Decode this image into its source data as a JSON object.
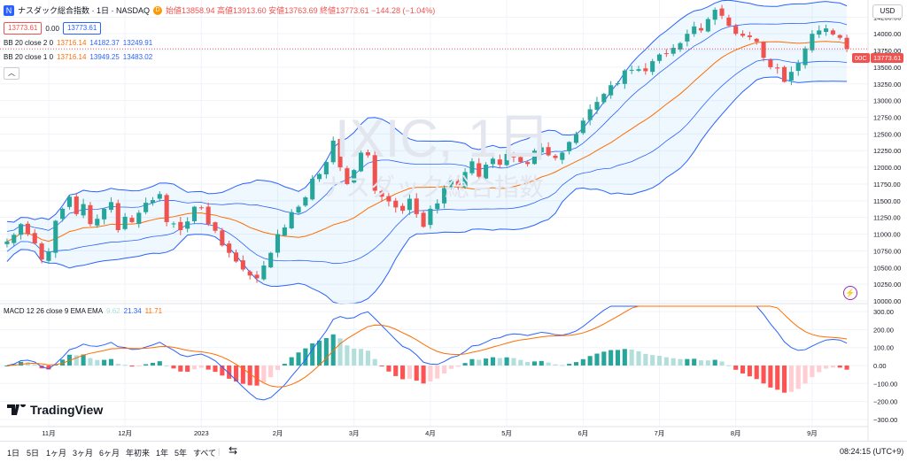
{
  "header": {
    "symbol_title": "ナスダック総合指数 · 1日 · NASDAQ",
    "badge": "D",
    "ohlc": "始値13858.94 高値13913.60 安値13763.69 終値13773.61 −144.28 (−1.04%)",
    "bid": "13773.61",
    "spread": "0.00",
    "ask": "13773.61",
    "currency": "USD"
  },
  "legend": {
    "bb1_label": "BB 20 close 2 0",
    "bb1_basis": "13716.14",
    "bb1_upper": "14182.37",
    "bb1_lower": "13249.91",
    "bb2_label": "BB 20 close 1 0",
    "bb2_basis": "13716.14",
    "bb2_upper": "13949.25",
    "bb2_lower": "13483.02",
    "macd_label": "MACD 12 26 close 9 EMA EMA",
    "macd_hist": "9.62",
    "macd_line": "21.34",
    "macd_signal": "11.71"
  },
  "watermark": {
    "main": "IXIC, 1日",
    "sub": "ナスダック総合指数"
  },
  "price_tags": {
    "last_close": "13773.61",
    "prefix": "00C"
  },
  "brand": {
    "name": "TradingView"
  },
  "timeframes": [
    "1日",
    "5日",
    "1ヶ月",
    "3ヶ月",
    "6ヶ月",
    "年初来",
    "1年",
    "5年",
    "すべて"
  ],
  "clock": "08:24:15 (UTC+9)",
  "colors": {
    "up": "#26a69a",
    "down": "#ef5350",
    "bb_outer": "#2962ff",
    "bb_basis": "#ff6d00",
    "macd_line": "#2962ff",
    "signal_line": "#ff6d00",
    "hist_up_strong": "#26a69a",
    "hist_up_weak": "#b2dfdb",
    "hist_down_strong": "#ff5252",
    "hist_down_weak": "#ffcdd2"
  },
  "chart_data": [
    {
      "type": "candlestick",
      "x_ticks": [
        "11月",
        "12月",
        "2023",
        "2月",
        "3月",
        "4月",
        "5月",
        "6月",
        "7月",
        "8月",
        "9月"
      ],
      "y_ticks": [
        10000,
        10250,
        10500,
        10750,
        11000,
        11250,
        11500,
        11750,
        12000,
        12250,
        12500,
        12750,
        13000,
        13250,
        13500,
        13750,
        14000,
        14250
      ],
      "ylim": [
        10000,
        14400
      ],
      "close_series": [
        10890,
        10990,
        11150,
        11000,
        10860,
        10620,
        10740,
        11200,
        11380,
        11560,
        11300,
        11450,
        11150,
        11230,
        11380,
        11480,
        11060,
        11260,
        11180,
        11320,
        11470,
        11510,
        11600,
        11180,
        11160,
        11060,
        11190,
        11410,
        11400,
        11150,
        11050,
        10830,
        10720,
        10590,
        10470,
        10380,
        10340,
        10530,
        10720,
        11000,
        11100,
        11330,
        11410,
        11550,
        11830,
        11900,
        12080,
        12400,
        12000,
        11750,
        11960,
        12220,
        12180,
        11650,
        11560,
        11490,
        11400,
        11350,
        11530,
        11300,
        11110,
        11380,
        11460,
        11690,
        11800,
        11720,
        11930,
        12090,
        11860,
        12040,
        12130,
        12040,
        12200,
        12150,
        12080,
        12050,
        12250,
        12300,
        12180,
        12140,
        12220,
        12380,
        12500,
        12700,
        12870,
        12980,
        13100,
        13230,
        13260,
        13450,
        13460,
        13470,
        13440,
        13590,
        13690,
        13700,
        13790,
        13860,
        14000,
        14110,
        14050,
        14220,
        14360,
        14270,
        14120,
        14000,
        13970,
        13950,
        13880,
        13640,
        13500,
        13480,
        13280,
        13430,
        13560,
        13780,
        14000,
        14050,
        14080,
        13990,
        13940,
        13773.61
      ],
      "bb_outer_upper_first_last": [
        11900,
        14182.37
      ],
      "bb_outer_lower_first_last": [
        10500,
        13249.91
      ],
      "bb_basis_last": 13716.14,
      "bb_inner_upper_last": 13949.25,
      "bb_inner_lower_last": 13483.02
    },
    {
      "type": "line",
      "title": "MACD 12 26 close 9 EMA EMA",
      "y_ticks": [
        300,
        200,
        100,
        0,
        -100,
        -200,
        -300
      ],
      "ylim": [
        -330,
        330
      ],
      "last_values": {
        "macd": 21.34,
        "signal": 11.71,
        "histogram": 9.62
      }
    }
  ]
}
